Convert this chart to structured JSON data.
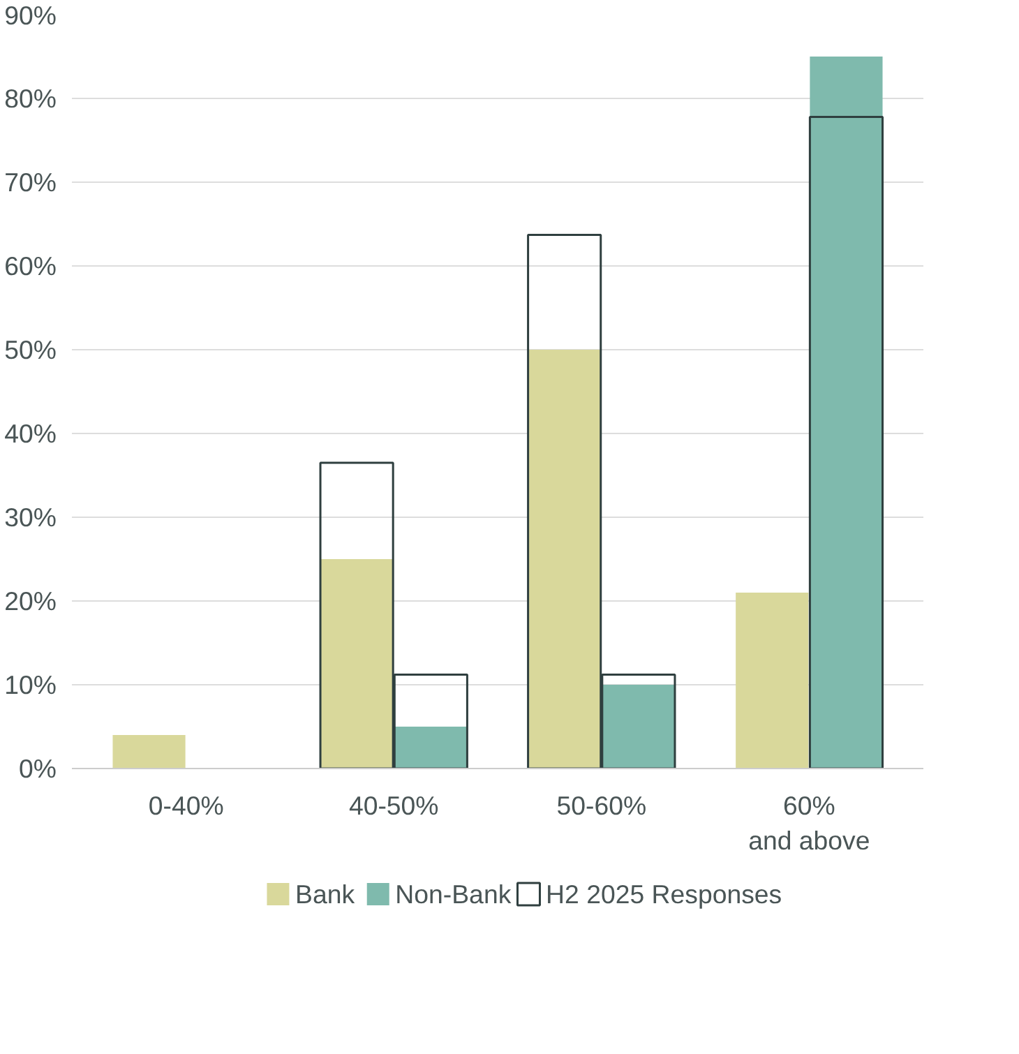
{
  "chart_data": {
    "type": "bar",
    "categories": [
      "0-40%",
      "40-50%",
      "50-60%",
      "60% and above"
    ],
    "series": [
      {
        "name": "Bank",
        "color": "#d9d89b",
        "values": [
          4,
          25,
          50,
          21
        ]
      },
      {
        "name": "Non-Bank",
        "color": "#7fbaad",
        "values": [
          0,
          5,
          10,
          85
        ]
      },
      {
        "name": "H2 2025 Responses",
        "line_style": "solid",
        "color": "#2f3f3f",
        "values": [
          null,
          36.5,
          63.7,
          null
        ]
      },
      {
        "line_style": "solid",
        "color": "#2f3f3f",
        "values": [
          null,
          11.2,
          11.2,
          77.8
        ]
      }
    ],
    "ylim": [
      0,
      90
    ],
    "yticks": [
      {
        "value": 0,
        "label": "0%"
      },
      {
        "value": 10,
        "label": "10%"
      },
      {
        "value": 20,
        "label": "20%"
      },
      {
        "value": 30,
        "label": "30%"
      },
      {
        "value": 40,
        "label": "40%"
      },
      {
        "value": 50,
        "label": "50%"
      },
      {
        "value": 60,
        "label": "60%"
      },
      {
        "value": 70,
        "label": "70%"
      },
      {
        "value": 80,
        "label": "80%"
      },
      {
        "value": 90,
        "label": "90%"
      }
    ],
    "grid": "y",
    "legend": "bottom"
  }
}
